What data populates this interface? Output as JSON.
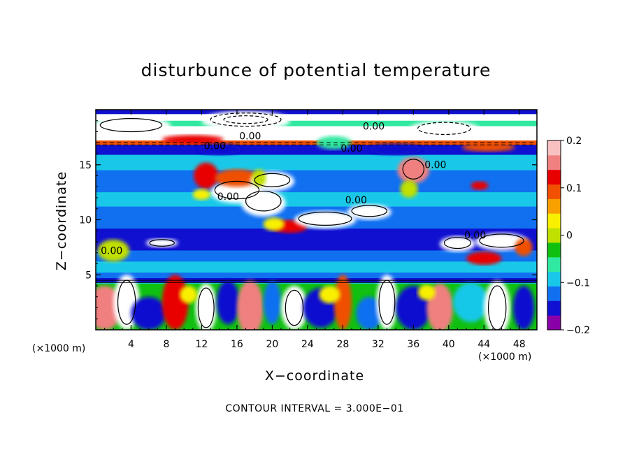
{
  "chart_data": {
    "type": "heatmap",
    "title": "disturbunce of potential temperature",
    "xlabel": "X−coordinate",
    "ylabel": "Z−coordinate",
    "x_unit": "(×1000 m)",
    "y_unit": "(×1000 m)",
    "xlim": [
      0,
      50
    ],
    "ylim": [
      0,
      20
    ],
    "x_ticks": [
      4,
      8,
      12,
      16,
      20,
      24,
      28,
      32,
      36,
      40,
      44,
      48
    ],
    "y_ticks": [
      5,
      10,
      15
    ],
    "colorbar": {
      "range": [
        -0.2,
        0.2
      ],
      "ticks": [
        {
          "value": 0.2,
          "label": "0.2"
        },
        {
          "value": 0.1,
          "label": "0.1"
        },
        {
          "value": 0.0,
          "label": "0"
        },
        {
          "value": -0.1,
          "label": "−0.1"
        },
        {
          "value": -0.2,
          "label": "−0.2"
        }
      ],
      "colors": [
        "#8a00a8",
        "#1010d0",
        "#1070f0",
        "#19c8e8",
        "#30e8a0",
        "#10c010",
        "#c0e000",
        "#f8f000",
        "#f8a000",
        "#f05000",
        "#e80000",
        "#f08080",
        "#f8c0c0"
      ]
    },
    "contour_labels": [
      "0.00",
      "0.00",
      "0.00",
      "0.00",
      "0.00",
      "0.00",
      "0.00",
      "0.00",
      "0.00"
    ],
    "contour_interval_text": "CONTOUR INTERVAL = 3.000E−01"
  }
}
